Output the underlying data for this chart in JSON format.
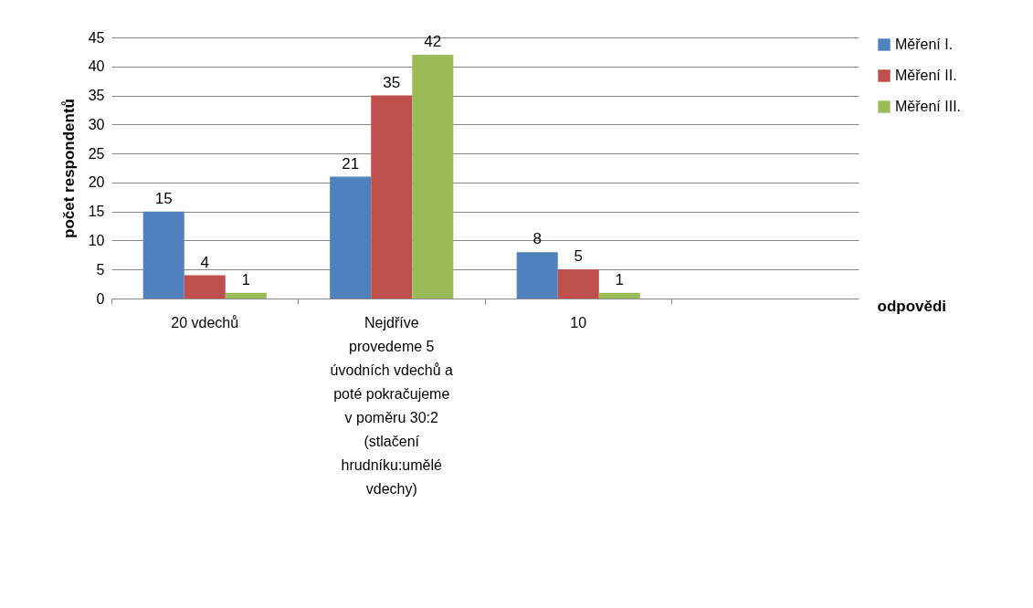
{
  "chart_data": {
    "type": "bar",
    "xlabel": "odpovědi",
    "ylabel": "počet respondentů",
    "categories": [
      "20 vdechů",
      "Nejdříve provedeme 5 úvodních vdechů a poté pokračujeme v poměru 30:2 (stlačení hrudníku:umělé vdechy)",
      "10",
      null
    ],
    "series": [
      {
        "name": "Měření I.",
        "color": "#4f81bd",
        "values": [
          15,
          21,
          8,
          null
        ]
      },
      {
        "name": "Měření II.",
        "color": "#c0504d",
        "values": [
          4,
          35,
          5,
          null
        ]
      },
      {
        "name": "Měření III.",
        "color": "#9bbb59",
        "values": [
          1,
          42,
          1,
          null
        ]
      }
    ],
    "ylim": [
      0,
      45
    ],
    "yticks": [
      0,
      5,
      10,
      15,
      20,
      25,
      30,
      35,
      40,
      45
    ],
    "grid": "y",
    "legend": "right",
    "data_labels": true
  }
}
